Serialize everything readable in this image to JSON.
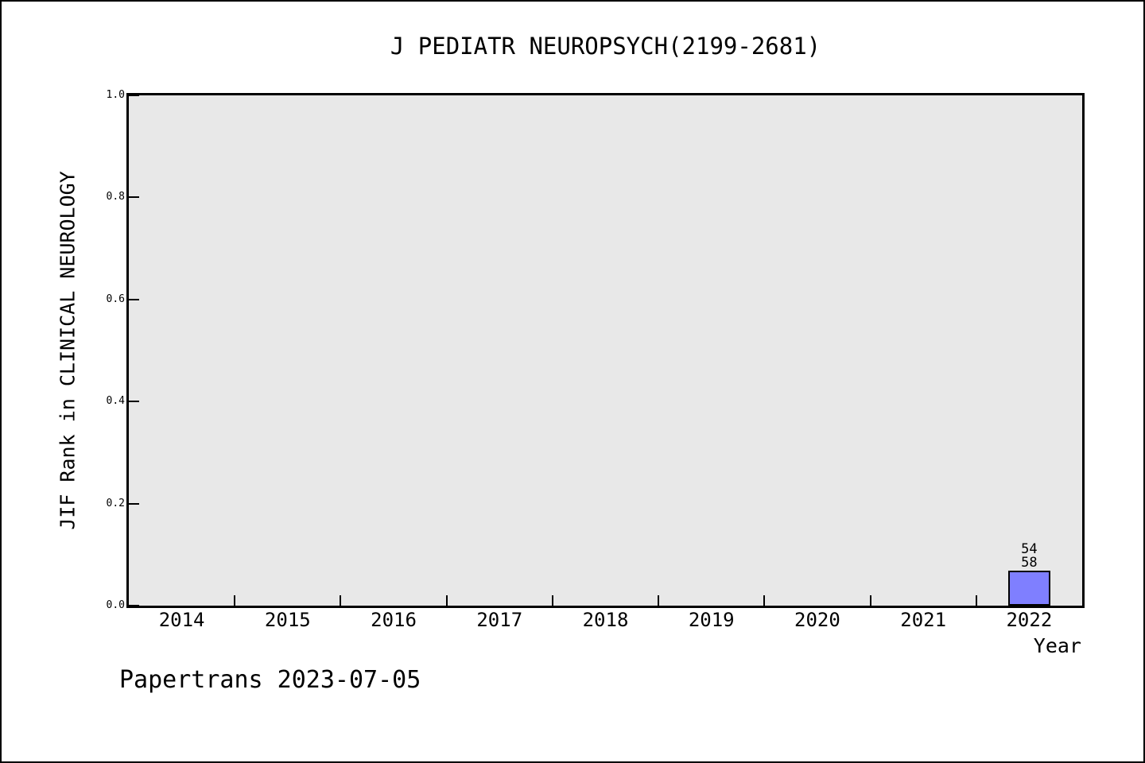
{
  "figure": {
    "footer": "Papertrans 2023-07-05"
  },
  "chart_data": {
    "type": "bar",
    "title": "J PEDIATR NEUROPSYCH(2199-2681)",
    "xlabel": "Year",
    "ylabel": "JIF Rank in CLINICAL NEUROLOGY",
    "categories": [
      "2014",
      "2015",
      "2016",
      "2017",
      "2018",
      "2019",
      "2020",
      "2021",
      "2022"
    ],
    "values": [
      null,
      null,
      null,
      null,
      null,
      null,
      null,
      null,
      0.069
    ],
    "bar_labels": [
      null,
      null,
      null,
      null,
      null,
      null,
      null,
      null,
      [
        "54",
        "58"
      ]
    ],
    "y_ticks": [
      "0.0",
      "0.2",
      "0.4",
      "0.6",
      "0.8",
      "1.0"
    ],
    "ylim": [
      0,
      1
    ],
    "grid": false,
    "legend": null,
    "layout_hints": {
      "x_ticks_at_category_boundaries": true,
      "tick_direction": "in"
    },
    "colors": {
      "bar_fill": "#7f7fff",
      "bar_edge": "#000000",
      "plot_background": "#e8e8e8",
      "text": "#000000"
    }
  }
}
